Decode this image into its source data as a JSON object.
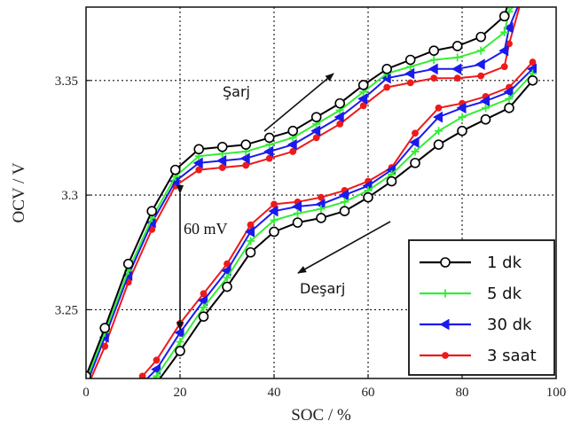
{
  "chart_data": {
    "type": "line",
    "title": "",
    "xlabel": "SOC / %",
    "ylabel": "OCV / V",
    "xlim": [
      0,
      100
    ],
    "ylim": [
      3.22,
      3.382
    ],
    "xticks": [
      "0",
      "20",
      "40",
      "60",
      "80",
      "100"
    ],
    "yticks": [
      "3.25",
      "3.3",
      "3.35"
    ],
    "grid": true,
    "legend_position": "bottom-right",
    "colors": {
      "1 dk": "#000000",
      "5 dk": "#33ee33",
      "30 dk": "#1a1aee",
      "3 saat": "#ee1a1a"
    },
    "markers": {
      "1 dk": "open-circle",
      "5 dk": "plus",
      "30 dk": "triangle-left",
      "3 saat": "filled-circle"
    },
    "annotations": {
      "charge": "Şarj",
      "discharge": "Deşarj",
      "gap": "60 mV"
    },
    "charge_series": [
      {
        "name": "1 dk",
        "x": [
          0,
          4,
          9,
          14,
          19,
          24,
          29,
          34,
          39,
          44,
          49,
          54,
          59,
          64,
          69,
          74,
          79,
          84,
          89,
          90,
          93
        ],
        "y": [
          3.221,
          3.242,
          3.27,
          3.293,
          3.311,
          3.32,
          3.321,
          3.322,
          3.325,
          3.328,
          3.334,
          3.34,
          3.348,
          3.355,
          3.359,
          3.363,
          3.365,
          3.369,
          3.378,
          3.385,
          3.388
        ]
      },
      {
        "name": "5 dk",
        "x": [
          0,
          4,
          9,
          14,
          19,
          24,
          29,
          34,
          39,
          44,
          49,
          54,
          59,
          64,
          69,
          74,
          79,
          84,
          89,
          90,
          93
        ],
        "y": [
          3.219,
          3.24,
          3.267,
          3.29,
          3.308,
          3.317,
          3.318,
          3.319,
          3.322,
          3.325,
          3.331,
          3.337,
          3.345,
          3.353,
          3.356,
          3.359,
          3.36,
          3.363,
          3.371,
          3.38,
          3.388
        ]
      },
      {
        "name": "30 dk",
        "x": [
          0,
          4,
          9,
          14,
          19,
          24,
          29,
          34,
          39,
          44,
          49,
          54,
          59,
          64,
          69,
          74,
          79,
          84,
          89,
          90,
          93
        ],
        "y": [
          3.217,
          3.238,
          3.265,
          3.288,
          3.306,
          3.314,
          3.315,
          3.316,
          3.319,
          3.322,
          3.328,
          3.334,
          3.342,
          3.351,
          3.353,
          3.355,
          3.355,
          3.357,
          3.363,
          3.373,
          3.388
        ]
      },
      {
        "name": "3 saat",
        "x": [
          0,
          4,
          9,
          14,
          19,
          24,
          29,
          34,
          39,
          44,
          49,
          54,
          59,
          64,
          69,
          74,
          79,
          84,
          89,
          90,
          93
        ],
        "y": [
          3.215,
          3.234,
          3.262,
          3.285,
          3.304,
          3.311,
          3.312,
          3.313,
          3.316,
          3.319,
          3.325,
          3.331,
          3.339,
          3.347,
          3.349,
          3.351,
          3.351,
          3.352,
          3.356,
          3.366,
          3.388
        ]
      }
    ],
    "discharge_series": [
      {
        "name": "1 dk",
        "x": [
          12,
          15,
          20,
          25,
          30,
          35,
          40,
          45,
          50,
          55,
          60,
          65,
          70,
          75,
          80,
          85,
          90,
          95
        ],
        "y": [
          3.212,
          3.218,
          3.232,
          3.247,
          3.26,
          3.275,
          3.284,
          3.288,
          3.29,
          3.293,
          3.299,
          3.306,
          3.314,
          3.322,
          3.328,
          3.333,
          3.338,
          3.35
        ]
      },
      {
        "name": "5 dk",
        "x": [
          12,
          15,
          20,
          25,
          30,
          35,
          40,
          45,
          50,
          55,
          60,
          65,
          70,
          75,
          80,
          85,
          90,
          95
        ],
        "y": [
          3.215,
          3.221,
          3.236,
          3.251,
          3.264,
          3.28,
          3.289,
          3.292,
          3.294,
          3.297,
          3.302,
          3.309,
          3.319,
          3.328,
          3.334,
          3.338,
          3.342,
          3.353
        ]
      },
      {
        "name": "30 dk",
        "x": [
          12,
          15,
          20,
          25,
          30,
          35,
          40,
          45,
          50,
          55,
          60,
          65,
          70,
          75,
          80,
          85,
          90,
          95
        ],
        "y": [
          3.218,
          3.224,
          3.24,
          3.254,
          3.267,
          3.284,
          3.293,
          3.295,
          3.296,
          3.3,
          3.304,
          3.311,
          3.323,
          3.334,
          3.338,
          3.341,
          3.345,
          3.355
        ]
      },
      {
        "name": "3 saat",
        "x": [
          12,
          15,
          20,
          25,
          30,
          35,
          40,
          45,
          50,
          55,
          60,
          65,
          70,
          75,
          80,
          85,
          90,
          95
        ],
        "y": [
          3.221,
          3.228,
          3.244,
          3.257,
          3.27,
          3.287,
          3.296,
          3.297,
          3.299,
          3.302,
          3.306,
          3.312,
          3.327,
          3.338,
          3.34,
          3.343,
          3.347,
          3.358
        ]
      }
    ]
  }
}
